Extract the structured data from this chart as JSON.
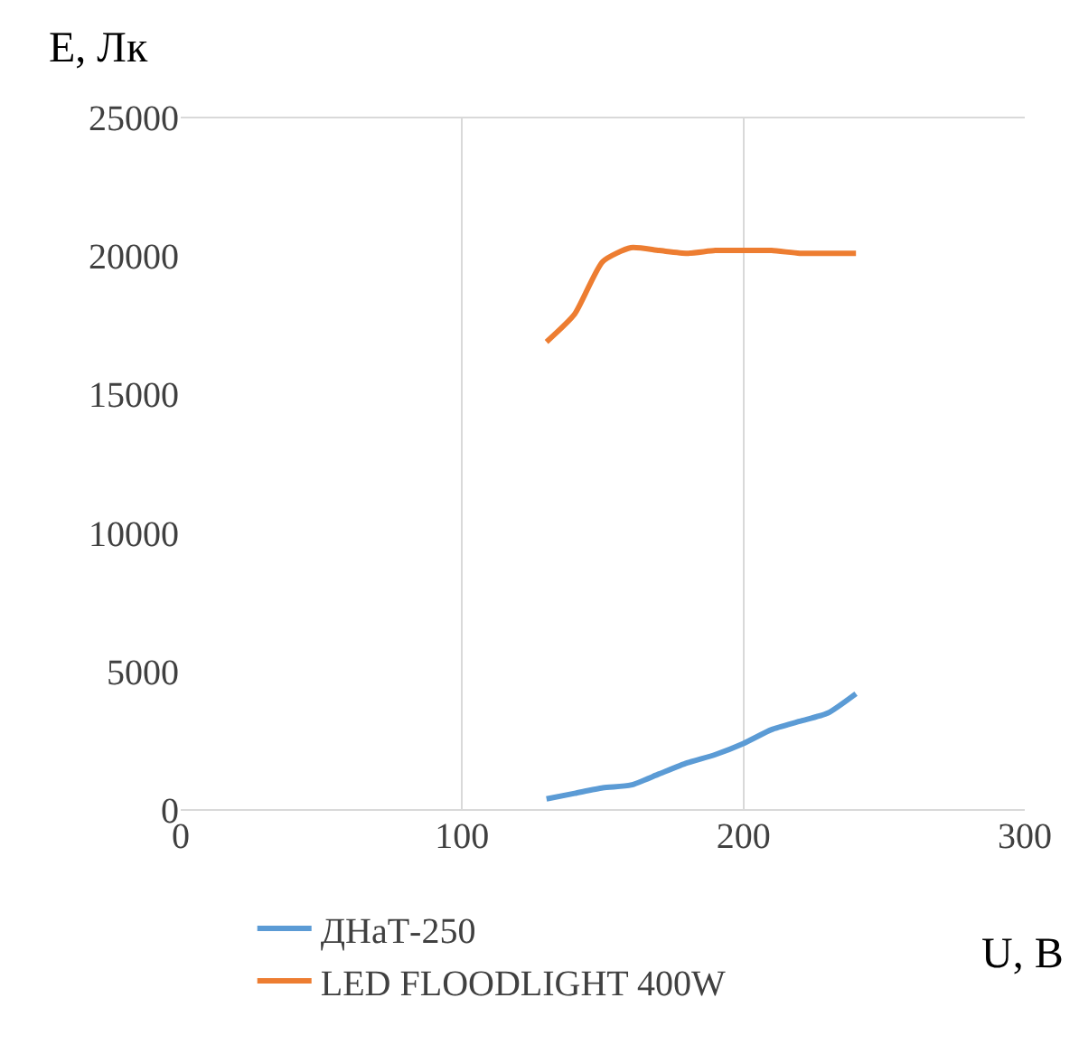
{
  "chart_data": {
    "type": "line",
    "xlabel": "U, B",
    "ylabel": "E, Лк",
    "x": [
      130,
      140,
      150,
      160,
      170,
      180,
      190,
      200,
      210,
      220,
      230,
      240
    ],
    "series": [
      {
        "name": "ДНаТ-250",
        "color": "#5b9bd5",
        "values": [
          400,
          600,
          800,
          900,
          1300,
          1700,
          2000,
          2400,
          2900,
          3200,
          3500,
          4200
        ]
      },
      {
        "name": "LED FLOODLIGHT 400W",
        "color": "#ed7d31",
        "values": [
          16900,
          17900,
          19800,
          20300,
          20200,
          20100,
          20200,
          20200,
          20200,
          20100,
          20100,
          20100
        ]
      }
    ],
    "xlim": [
      0,
      300
    ],
    "xticks": [
      0,
      100,
      200,
      300
    ],
    "ylim": [
      0,
      25000
    ],
    "yticks": [
      0,
      5000,
      10000,
      15000,
      20000,
      25000
    ],
    "grid": "x",
    "legend": "bottom",
    "marker": "none",
    "line_style": "solid"
  }
}
